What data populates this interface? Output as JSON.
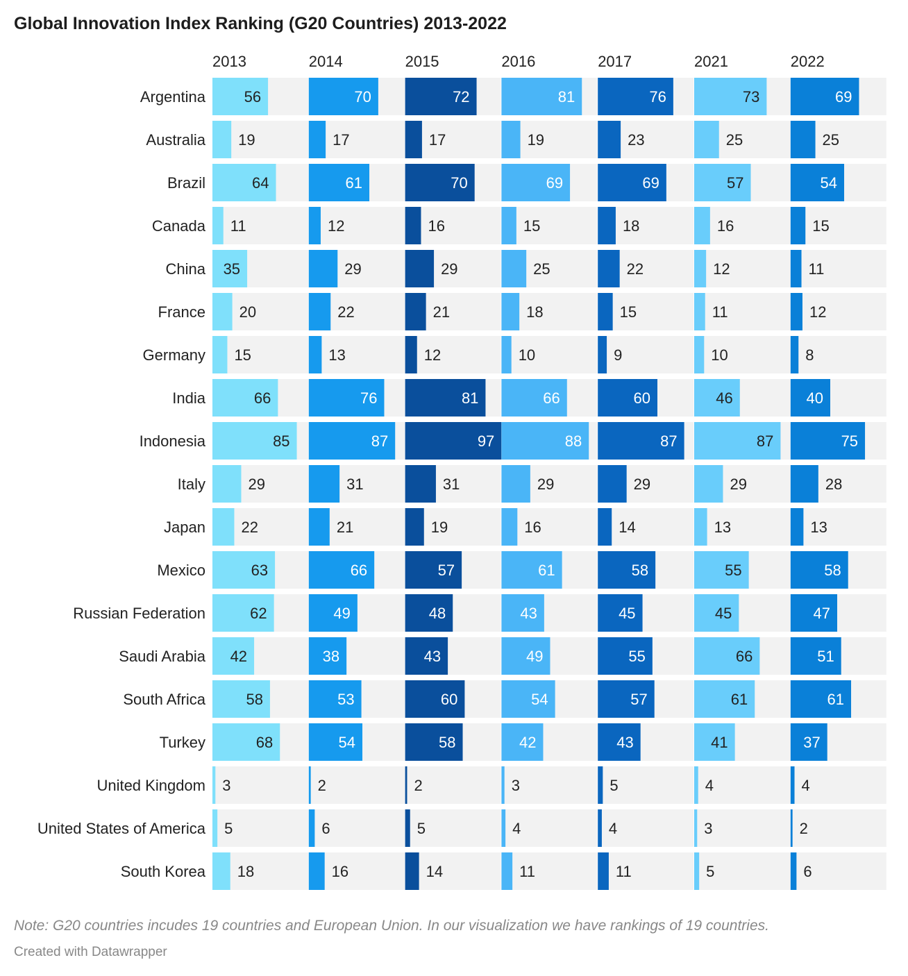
{
  "title": "Global Innovation Index Ranking (G20 Countries) 2013-2022",
  "note": "Note: G20 countries incudes 19 countries and European Union. In our visualization we have rankings of 19 countries.",
  "credit": "Created with Datawrapper",
  "colors": {
    "background_track": "#f2f2f2",
    "series": [
      "#7fe0fb",
      "#169aee",
      "#0a4f9c",
      "#4ab5f7",
      "#0a66bf",
      "#69cdfb",
      "#0a80d8"
    ],
    "label_dark": "#222222",
    "label_light": "#ffffff"
  },
  "chart_data": {
    "type": "bar",
    "layout": "small-multiples-horizontal",
    "title": "Global Innovation Index Ranking (G20 Countries) 2013-2022",
    "xlim": [
      0,
      100
    ],
    "categories": [
      "Argentina",
      "Australia",
      "Brazil",
      "Canada",
      "China",
      "France",
      "Germany",
      "India",
      "Indonesia",
      "Italy",
      "Japan",
      "Mexico",
      "Russian Federation",
      "Saudi Arabia",
      "South Africa",
      "Turkey",
      "United Kingdom",
      "United States of America",
      "South Korea"
    ],
    "series": [
      {
        "name": "2013",
        "values": [
          56,
          19,
          64,
          11,
          35,
          20,
          15,
          66,
          85,
          29,
          22,
          63,
          62,
          42,
          58,
          68,
          3,
          5,
          18
        ]
      },
      {
        "name": "2014",
        "values": [
          70,
          17,
          61,
          12,
          29,
          22,
          13,
          76,
          87,
          31,
          21,
          66,
          49,
          38,
          53,
          54,
          2,
          6,
          16
        ]
      },
      {
        "name": "2015",
        "values": [
          72,
          17,
          70,
          16,
          29,
          21,
          12,
          81,
          97,
          31,
          19,
          57,
          48,
          43,
          60,
          58,
          2,
          5,
          14
        ]
      },
      {
        "name": "2016",
        "values": [
          81,
          19,
          69,
          15,
          25,
          18,
          10,
          66,
          88,
          29,
          16,
          61,
          43,
          49,
          54,
          42,
          3,
          4,
          11
        ]
      },
      {
        "name": "2017",
        "values": [
          76,
          23,
          69,
          18,
          22,
          15,
          9,
          60,
          87,
          29,
          14,
          58,
          45,
          55,
          57,
          43,
          5,
          4,
          11
        ]
      },
      {
        "name": "2021",
        "values": [
          73,
          25,
          57,
          16,
          12,
          11,
          10,
          46,
          87,
          29,
          13,
          55,
          45,
          66,
          61,
          41,
          4,
          3,
          5
        ]
      },
      {
        "name": "2022",
        "values": [
          69,
          25,
          54,
          15,
          11,
          12,
          8,
          40,
          75,
          28,
          13,
          58,
          47,
          51,
          61,
          37,
          4,
          2,
          6
        ]
      }
    ]
  }
}
